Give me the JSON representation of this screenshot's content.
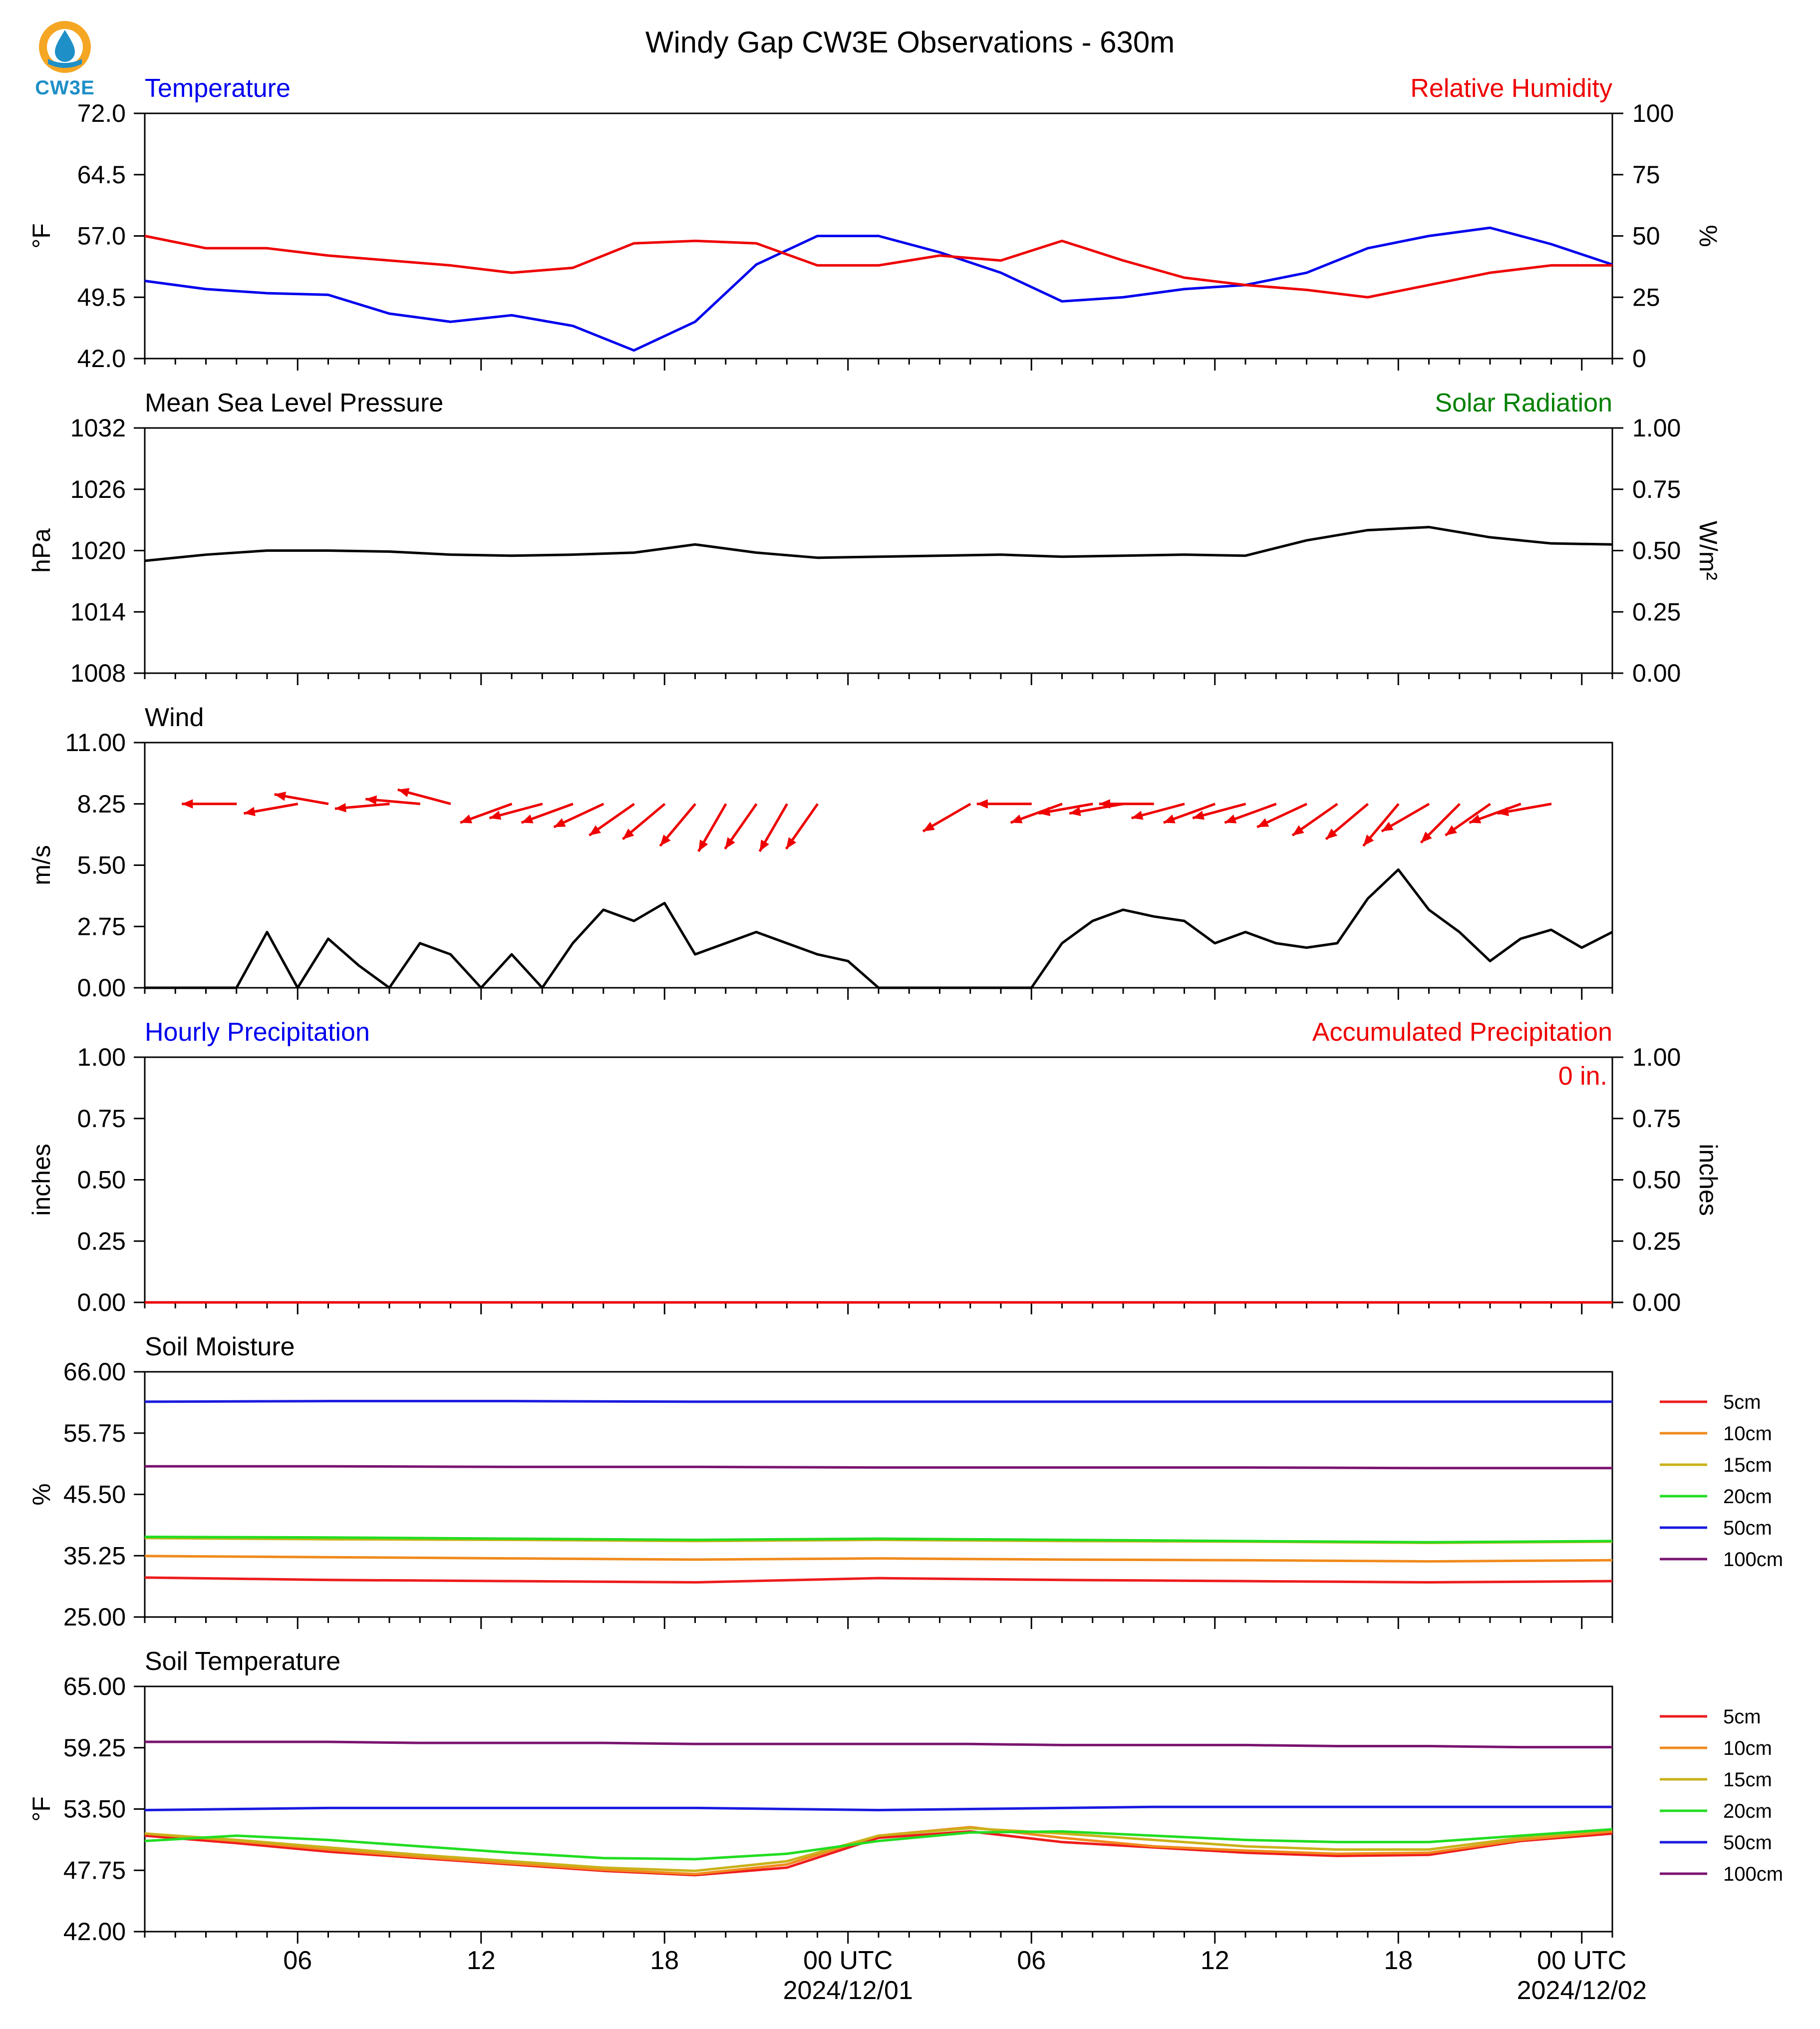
{
  "title": "Windy Gap CW3E Observations - 630m",
  "logo": {
    "text": "CW3E",
    "icon": "cw3e-water-drop-logo",
    "colors": {
      "ring": "#f5a623",
      "drop": "#1f8fc7"
    }
  },
  "x_axis": {
    "ticks": [
      "06",
      "12",
      "18",
      "00 UTC",
      "06",
      "12",
      "18",
      "00 UTC"
    ],
    "dates": [
      "2024/12/01",
      "2024/12/02"
    ]
  },
  "panels": {
    "temp_rh": {
      "left_title": "Temperature",
      "right_title": "Relative Humidity",
      "left_unit": "°F",
      "right_unit": "%",
      "left_ticks": [
        "72.0",
        "64.5",
        "57.0",
        "49.5",
        "42.0"
      ],
      "right_ticks": [
        "100",
        "75",
        "50",
        "25",
        "0"
      ]
    },
    "pressure": {
      "left_title": "Mean Sea Level Pressure",
      "right_title": "Solar Radiation",
      "left_unit": "hPa",
      "right_unit": "W/m²",
      "left_ticks": [
        "1032",
        "1026",
        "1020",
        "1014",
        "1008"
      ],
      "right_ticks": [
        "1.00",
        "0.75",
        "0.50",
        "0.25",
        "0.00"
      ]
    },
    "wind": {
      "left_title": "Wind",
      "left_unit": "m/s",
      "left_ticks": [
        "11.00",
        "8.25",
        "5.50",
        "2.75",
        "0.00"
      ]
    },
    "precip": {
      "left_title": "Hourly Precipitation",
      "right_title": "Accumulated Precipitation",
      "left_unit": "inches",
      "right_unit": "inches",
      "left_ticks": [
        "1.00",
        "0.75",
        "0.50",
        "0.25",
        "0.00"
      ],
      "right_ticks": [
        "1.00",
        "0.75",
        "0.50",
        "0.25",
        "0.00"
      ],
      "accum_label": "0 in."
    },
    "soil_moisture": {
      "left_title": "Soil Moisture",
      "left_unit": "%",
      "left_ticks": [
        "66.00",
        "55.75",
        "45.50",
        "35.25",
        "25.00"
      ]
    },
    "soil_temp": {
      "left_title": "Soil Temperature",
      "left_unit": "°F",
      "left_ticks": [
        "65.00",
        "59.25",
        "53.50",
        "47.75",
        "42.00"
      ]
    }
  },
  "legend": [
    {
      "label": "5cm",
      "color": "#ee1c1c"
    },
    {
      "label": "10cm",
      "color": "#f08a1c"
    },
    {
      "label": "15cm",
      "color": "#c9b21a"
    },
    {
      "label": "20cm",
      "color": "#22dd22"
    },
    {
      "label": "50cm",
      "color": "#1a1ae0"
    },
    {
      "label": "100cm",
      "color": "#7a1470"
    }
  ],
  "colors": {
    "temperature": "#0000ee",
    "humidity": "#ee0000",
    "pressure": "#000000",
    "wind_speed": "#000000",
    "wind_arrow": "#ee0000",
    "solar": "#008000",
    "hourly_precip": "#0000ee",
    "accum_precip": "#ee0000"
  },
  "chart_data": [
    {
      "type": "line",
      "title": "Temperature / Relative Humidity",
      "x_hours": [
        0,
        2,
        4,
        6,
        8,
        10,
        12,
        14,
        16,
        18,
        20,
        22,
        24,
        26,
        28,
        30,
        32,
        34,
        36,
        38,
        40,
        42,
        44,
        46,
        48
      ],
      "series": [
        {
          "name": "Temperature",
          "axis": "left",
          "values": [
            51.5,
            50.5,
            50,
            49.8,
            47.5,
            46.5,
            47.3,
            46,
            43,
            46.5,
            53.5,
            57,
            57,
            55,
            52.5,
            49,
            49.5,
            50.5,
            51,
            52.5,
            55.5,
            57,
            58,
            56,
            53.5
          ]
        },
        {
          "name": "Relative Humidity",
          "axis": "right",
          "values": [
            50,
            45,
            45,
            42,
            40,
            38,
            35,
            37,
            47,
            48,
            47,
            38,
            38,
            42,
            40,
            48,
            40,
            33,
            30,
            28,
            25,
            30,
            35,
            38,
            38
          ]
        }
      ],
      "ylim": [
        42,
        72
      ],
      "y2lim": [
        0,
        100
      ]
    },
    {
      "type": "line",
      "title": "Mean Sea Level Pressure",
      "x_hours": [
        0,
        2,
        4,
        6,
        8,
        10,
        12,
        14,
        16,
        18,
        20,
        22,
        24,
        26,
        28,
        30,
        32,
        34,
        36,
        38,
        40,
        42,
        44,
        46,
        48
      ],
      "series": [
        {
          "name": "Mean Sea Level Pressure",
          "values": [
            1019.0,
            1019.6,
            1020.0,
            1020.0,
            1019.9,
            1019.6,
            1019.5,
            1019.6,
            1019.8,
            1020.6,
            1019.8,
            1019.3,
            1019.4,
            1019.5,
            1019.6,
            1019.4,
            1019.5,
            1019.6,
            1019.5,
            1021.0,
            1022.0,
            1022.3,
            1021.3,
            1020.7,
            1020.6
          ]
        }
      ],
      "ylim": [
        1008,
        1032
      ],
      "y2lim": [
        0,
        1
      ]
    },
    {
      "type": "line",
      "title": "Wind",
      "x_hours": [
        0,
        2,
        3,
        4,
        5,
        6,
        7,
        8,
        9,
        10,
        11,
        12,
        13,
        14,
        15,
        16,
        17,
        18,
        19,
        20,
        21,
        22,
        23,
        24,
        25,
        26,
        27,
        28,
        29,
        30,
        31,
        32,
        33,
        34,
        35,
        36,
        37,
        38,
        39,
        40,
        41,
        42,
        43,
        44,
        45,
        46,
        47,
        48
      ],
      "series": [
        {
          "name": "Wind speed",
          "values": [
            0,
            0,
            0,
            2.5,
            0,
            2.2,
            1,
            0,
            2,
            1.5,
            0,
            1.5,
            0,
            2,
            3.5,
            3,
            3.8,
            1.5,
            2,
            2.5,
            2,
            1.5,
            1.2,
            0,
            0,
            0,
            0,
            0,
            0,
            2,
            3,
            3.5,
            3.2,
            3,
            2,
            2.5,
            2,
            1.8,
            2,
            4,
            5.3,
            3.5,
            2.5,
            1.2,
            2.2,
            2.6,
            1.8,
            2.5
          ]
        }
      ],
      "arrows_hours": [
        2.2,
        4.2,
        5.2,
        7.2,
        8.2,
        9.2,
        11.2,
        12.2,
        13.2,
        14.2,
        15.2,
        16.2,
        17.2,
        18.2,
        19.2,
        20.2,
        21.2,
        26.2,
        28.2,
        29.2,
        30.2,
        31.2,
        32.2,
        33.2,
        34.2,
        35.2,
        36.2,
        37.2,
        38.2,
        39.2,
        40.2,
        41.2,
        42.2,
        43.2,
        44.2,
        45.2
      ],
      "arrows_dir_deg": [
        90,
        100,
        80,
        95,
        85,
        75,
        110,
        105,
        110,
        115,
        125,
        130,
        140,
        150,
        145,
        150,
        145,
        120,
        90,
        110,
        100,
        100,
        90,
        105,
        110,
        105,
        110,
        115,
        125,
        130,
        140,
        120,
        135,
        125,
        110,
        100
      ],
      "ylim": [
        0,
        11
      ]
    },
    {
      "type": "line",
      "title": "Hourly Precipitation / Accumulated Precipitation",
      "x_hours": [
        0,
        48
      ],
      "series": [
        {
          "name": "Hourly Precipitation",
          "values": [
            0,
            0
          ]
        },
        {
          "name": "Accumulated Precipitation",
          "values": [
            0,
            0
          ]
        }
      ],
      "ylim": [
        0,
        1
      ],
      "y2lim": [
        0,
        1
      ]
    },
    {
      "type": "line",
      "title": "Soil Moisture",
      "x_hours": [
        0,
        6,
        12,
        18,
        24,
        30,
        36,
        42,
        48
      ],
      "series": [
        {
          "name": "5cm",
          "values": [
            31.6,
            31.2,
            31.0,
            30.8,
            31.5,
            31.2,
            31.0,
            30.8,
            31.0
          ]
        },
        {
          "name": "10cm",
          "values": [
            35.2,
            35.0,
            34.8,
            34.6,
            34.8,
            34.6,
            34.5,
            34.3,
            34.5
          ]
        },
        {
          "name": "15cm",
          "values": [
            38.2,
            38.0,
            37.9,
            37.7,
            37.9,
            37.7,
            37.6,
            37.4,
            37.6
          ]
        },
        {
          "name": "20cm",
          "values": [
            38.4,
            38.3,
            38.1,
            37.9,
            38.1,
            37.9,
            37.7,
            37.5,
            37.7
          ]
        },
        {
          "name": "50cm",
          "values": [
            61.0,
            61.1,
            61.1,
            61.0,
            61.0,
            61.0,
            61.0,
            61.0,
            61.0
          ]
        },
        {
          "name": "100cm",
          "values": [
            50.2,
            50.2,
            50.1,
            50.1,
            50.0,
            50.0,
            50.0,
            49.9,
            49.9
          ]
        }
      ],
      "ylim": [
        25,
        66
      ]
    },
    {
      "type": "line",
      "title": "Soil Temperature",
      "x_hours": [
        0,
        3,
        6,
        9,
        12,
        15,
        18,
        21,
        24,
        27,
        30,
        33,
        36,
        39,
        42,
        45,
        48
      ],
      "series": [
        {
          "name": "5cm",
          "values": [
            51.0,
            50.3,
            49.5,
            48.9,
            48.3,
            47.7,
            47.3,
            48.0,
            50.8,
            51.4,
            50.4,
            49.9,
            49.4,
            49.1,
            49.2,
            50.5,
            51.2
          ]
        },
        {
          "name": "10cm",
          "values": [
            51.2,
            50.5,
            49.7,
            49.0,
            48.4,
            47.8,
            47.4,
            48.3,
            51.0,
            51.8,
            50.8,
            50.0,
            49.6,
            49.3,
            49.4,
            50.6,
            51.4
          ]
        },
        {
          "name": "15cm",
          "values": [
            51.2,
            50.6,
            49.9,
            49.2,
            48.6,
            48.0,
            47.7,
            48.6,
            51.0,
            51.7,
            51.2,
            50.6,
            50.0,
            49.7,
            49.7,
            50.8,
            51.6
          ]
        },
        {
          "name": "20cm",
          "values": [
            50.5,
            51.0,
            50.6,
            50.0,
            49.4,
            48.9,
            48.8,
            49.3,
            50.5,
            51.3,
            51.4,
            51.0,
            50.6,
            50.4,
            50.4,
            51.0,
            51.6
          ]
        },
        {
          "name": "50cm",
          "values": [
            53.4,
            53.5,
            53.6,
            53.6,
            53.6,
            53.6,
            53.6,
            53.5,
            53.4,
            53.5,
            53.6,
            53.7,
            53.7,
            53.7,
            53.7,
            53.7,
            53.7
          ]
        },
        {
          "name": "100cm",
          "values": [
            59.8,
            59.8,
            59.8,
            59.7,
            59.7,
            59.7,
            59.6,
            59.6,
            59.6,
            59.6,
            59.5,
            59.5,
            59.5,
            59.4,
            59.4,
            59.3,
            59.3
          ]
        }
      ],
      "ylim": [
        42,
        65
      ]
    }
  ]
}
